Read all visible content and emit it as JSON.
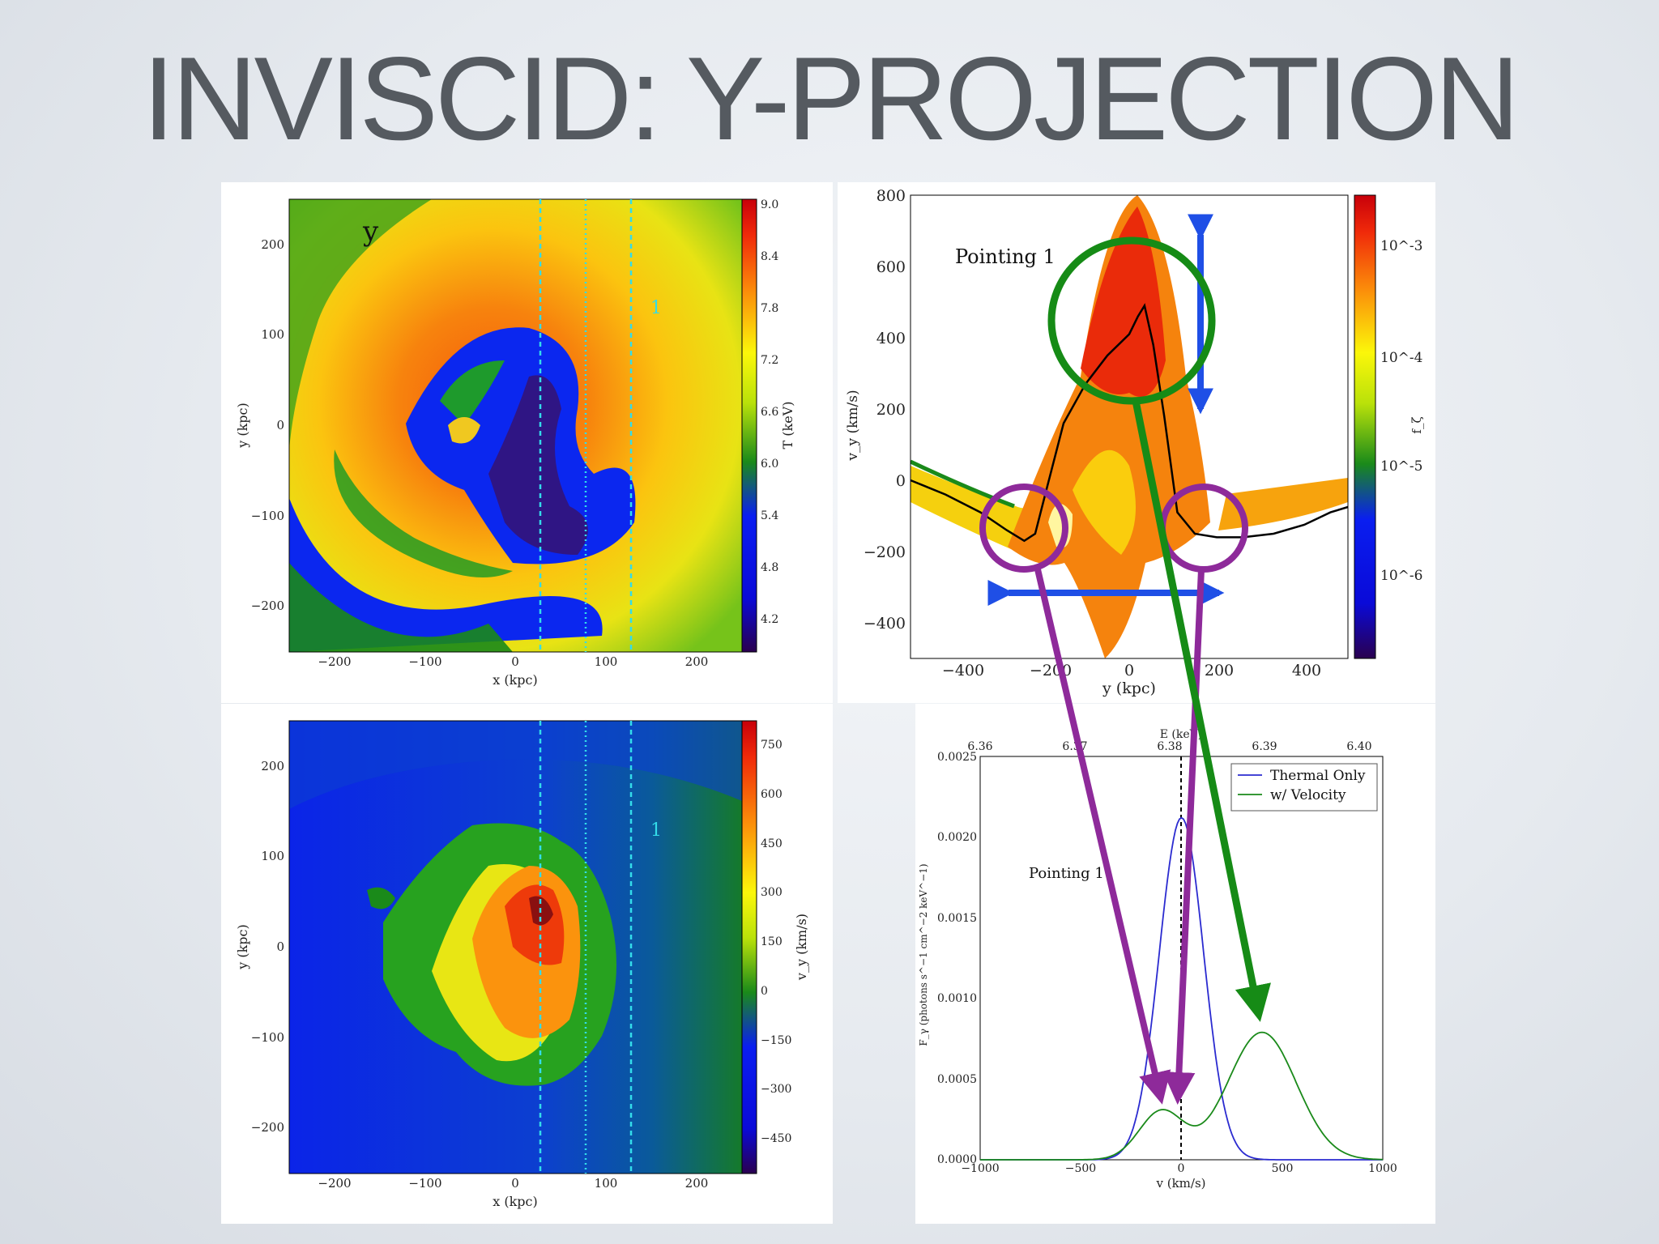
{
  "slide": {
    "title": "INVISCID: Y-PROJECTION"
  },
  "colors": {
    "annotation_purple": "#8e2a9a",
    "annotation_green": "#168b16",
    "annotation_blue": "#1f4fe6",
    "line_marker_cyan": "#33dcea",
    "thermal_line": "#2b2bd0",
    "velocity_line": "#1a8a1a"
  },
  "chart_data": [
    {
      "id": "temperature-map",
      "type": "heatmap",
      "panel_label": "y",
      "pointing_label": "1",
      "xlabel": "x  (kpc)",
      "ylabel": "y  (kpc)",
      "xlim": [
        -250,
        250
      ],
      "ylim": [
        -250,
        250
      ],
      "xticks": [
        "−200",
        "−100",
        "0",
        "100",
        "200"
      ],
      "yticks": [
        "200",
        "100",
        "0",
        "−100",
        "−200"
      ],
      "colorbar": {
        "label": "T (keV)",
        "ticks": [
          "9.0",
          "8.4",
          "7.8",
          "7.2",
          "6.6",
          "6.0",
          "5.4",
          "4.8",
          "4.2"
        ],
        "range": [
          3.8,
          9.0
        ]
      },
      "pointing_lines_x": [
        28,
        78,
        128
      ]
    },
    {
      "id": "velocity-phase-plot",
      "type": "heatmap",
      "annotation": "Pointing 1",
      "xlabel": "y (kpc)",
      "ylabel": "v_y (km/s)",
      "xlim": [
        -500,
        500
      ],
      "ylim": [
        -500,
        800
      ],
      "xticks": [
        "−400",
        "−200",
        "0",
        "200",
        "400"
      ],
      "yticks": [
        "800",
        "600",
        "400",
        "200",
        "0",
        "−200",
        "−400"
      ],
      "colorbar": {
        "label": "f_ζ",
        "ticks": [
          "10^-3",
          "10^-4",
          "10^-5",
          "10^-6"
        ]
      },
      "mean_curve": {
        "x": [
          -500,
          -420,
          -340,
          -280,
          -240,
          -215,
          -190,
          -150,
          -100,
          -50,
          0,
          20,
          35,
          55,
          80,
          110,
          150,
          200,
          260,
          330,
          400,
          460,
          500
        ],
        "y": [
          0,
          -40,
          -90,
          -140,
          -170,
          -150,
          -30,
          160,
          270,
          350,
          410,
          460,
          490,
          380,
          180,
          -90,
          -150,
          -160,
          -160,
          -150,
          -125,
          -90,
          -75
        ]
      }
    },
    {
      "id": "velocity-map",
      "type": "heatmap",
      "pointing_label": "1",
      "xlabel": "x  (kpc)",
      "ylabel": "y  (kpc)",
      "xlim": [
        -250,
        250
      ],
      "ylim": [
        -250,
        250
      ],
      "xticks": [
        "−200",
        "−100",
        "0",
        "100",
        "200"
      ],
      "yticks": [
        "200",
        "100",
        "0",
        "−100",
        "−200"
      ],
      "colorbar": {
        "label": "v_y (km/s)",
        "ticks": [
          "750",
          "600",
          "450",
          "300",
          "150",
          "0",
          "−150",
          "−300",
          "−450"
        ],
        "range": [
          -570,
          830
        ]
      },
      "pointing_lines_x": [
        28,
        78,
        128
      ]
    },
    {
      "id": "line-spectrum",
      "type": "line",
      "annotation": "Pointing 1",
      "xlabel": "v (km/s)",
      "ylabel": "F_γ (photons s^−1 cm^−2 keV^−1)",
      "top_axis_label": "E (keV)",
      "top_ticks": [
        "6.36",
        "6.37",
        "6.38",
        "6.39",
        "6.40"
      ],
      "xlim": [
        -1000,
        1000
      ],
      "ylim": [
        0,
        0.0025
      ],
      "xticks": [
        "−1000",
        "−500",
        "0",
        "500",
        "1000"
      ],
      "yticks": [
        "0.0000",
        "0.0005",
        "0.0010",
        "0.0015",
        "0.0020",
        "0.0025"
      ],
      "legend": [
        "Thermal Only",
        "w/ Velocity"
      ],
      "legend_position": "top-right",
      "series": [
        {
          "name": "Thermal Only",
          "amplitude": 0.00212,
          "center": 0,
          "sigma": 110
        },
        {
          "name": "w/ Velocity",
          "components": [
            {
              "amplitude": 0.00079,
              "center": 400,
              "sigma": 170
            },
            {
              "amplitude": 0.0003,
              "center": -100,
              "sigma": 110
            }
          ]
        }
      ]
    }
  ]
}
